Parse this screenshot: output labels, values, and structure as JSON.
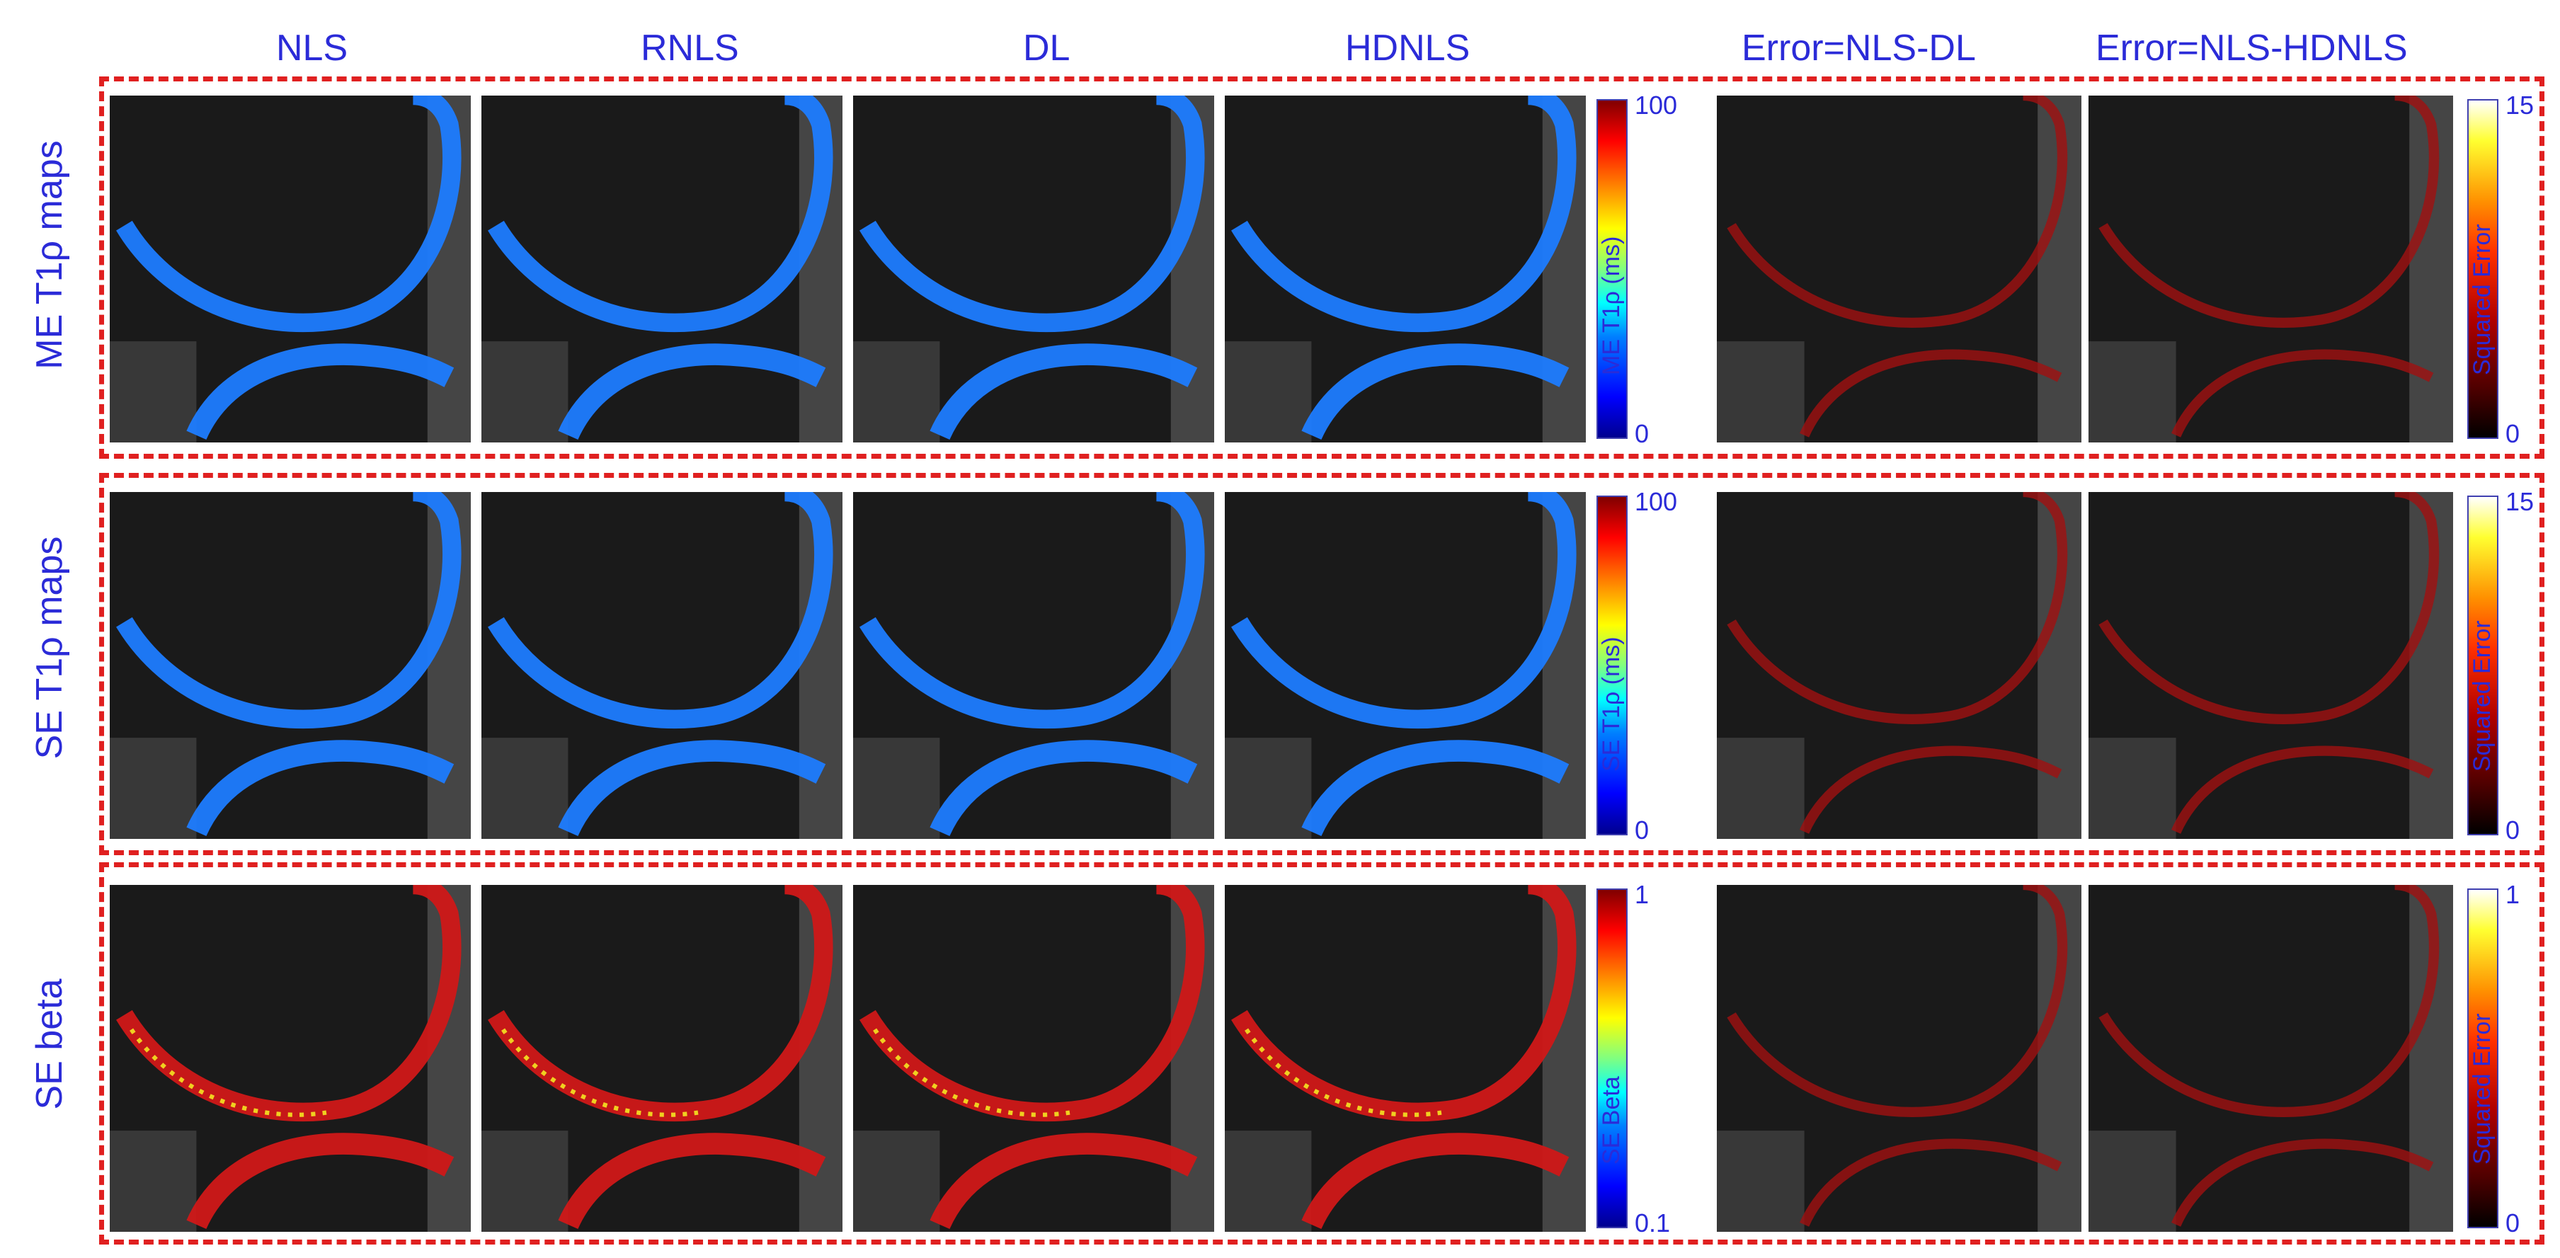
{
  "columns": {
    "nls": "NLS",
    "rnls": "RNLS",
    "dl": "DL",
    "hdnls": "HDNLS",
    "err_dl": "Error=NLS-DL",
    "err_hdnls": "Error=NLS-HDNLS"
  },
  "rows": [
    {
      "label": "ME  T1ρ maps",
      "map_colorbar": {
        "max": "100",
        "min": "0",
        "label": "ME T1ρ (ms)"
      },
      "error_colorbar": {
        "max": "15",
        "min": "0",
        "label": "Squared Error"
      }
    },
    {
      "label": "SE  T1ρ maps",
      "map_colorbar": {
        "max": "100",
        "min": "0",
        "label": "SE T1ρ (ms)"
      },
      "error_colorbar": {
        "max": "15",
        "min": "0",
        "label": "Squared Error"
      }
    },
    {
      "label": "SE beta",
      "map_colorbar": {
        "max": "1",
        "min": "0.1",
        "label": "SE Beta"
      },
      "error_colorbar": {
        "max": "1",
        "min": "0",
        "label": "Squared Error"
      }
    }
  ],
  "colors": {
    "title_blue": "#2b2bd8",
    "frame_red": "#e02020",
    "t1rho_cartilage": "#1e7cff",
    "beta_cartilage": "#d01818",
    "error_overlay": "#a01010"
  }
}
